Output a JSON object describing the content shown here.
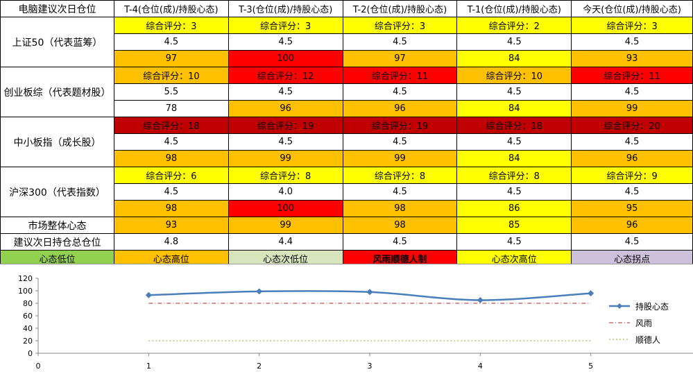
{
  "header": [
    "电脑建议次日仓位",
    "T-4(仓位(成)/持股心态)",
    "T-3(仓位(成)/持股心态)",
    "T-2(仓位(成)/持股心态)",
    "T-1(仓位(成)/持股心态)",
    "今天(仓位(成)/持股心态)"
  ],
  "groups": [
    {
      "label": "上证50（代表蓝筹）",
      "score": [
        "综合评分：3",
        "综合评分：3",
        "综合评分：3",
        "综合评分：2",
        "综合评分：3"
      ],
      "score_colors": [
        "yellow",
        "yellow",
        "yellow",
        "yellow",
        "yellow"
      ],
      "position": [
        "4.5",
        "4.5",
        "4.5",
        "4.5",
        "4.5"
      ],
      "mood": [
        "97",
        "100",
        "97",
        "84",
        "93"
      ],
      "mood_colors": [
        "orange",
        "red",
        "orange",
        "yellow",
        "orange"
      ]
    },
    {
      "label": "创业板综（代表题材股）",
      "score": [
        "综合评分：10",
        "综合评分：12",
        "综合评分：11",
        "综合评分：10",
        "综合评分：11"
      ],
      "score_colors": [
        "orange",
        "red",
        "red",
        "orange",
        "red"
      ],
      "position": [
        "5.5",
        "4.5",
        "4.5",
        "4.5",
        "4.5"
      ],
      "mood": [
        "78",
        "96",
        "96",
        "84",
        "99"
      ],
      "mood_colors": [
        "white",
        "orange",
        "orange",
        "yellow",
        "orange"
      ]
    },
    {
      "label": "中小板指（成长股）",
      "score": [
        "综合评分：18",
        "综合评分：19",
        "综合评分：19",
        "综合评分：18",
        "综合评分：20"
      ],
      "score_colors": [
        "darkred",
        "darkred",
        "darkred",
        "darkred",
        "darkred"
      ],
      "position": [
        "4.5",
        "4.5",
        "4.5",
        "4.5",
        "4.5"
      ],
      "mood": [
        "98",
        "99",
        "99",
        "84",
        "96"
      ],
      "mood_colors": [
        "orange",
        "orange",
        "orange",
        "yellow",
        "orange"
      ]
    },
    {
      "label": "沪深300（代表指数）",
      "score": [
        "综合评分：6",
        "综合评分：8",
        "综合评分：8",
        "综合评分：8",
        "综合评分：9"
      ],
      "score_colors": [
        "yellow",
        "yellow",
        "yellow",
        "yellow",
        "yellow"
      ],
      "position": [
        "4.5",
        "4.0",
        "4.5",
        "4.5",
        "4.5"
      ],
      "mood": [
        "98",
        "100",
        "98",
        "86",
        "95"
      ],
      "mood_colors": [
        "orange",
        "red",
        "orange",
        "yellow",
        "orange"
      ]
    }
  ],
  "market_mood": {
    "label": "市场整体心态",
    "values": [
      "93",
      "99",
      "98",
      "85",
      "96"
    ],
    "colors": [
      "orange",
      "orange",
      "orange",
      "yellow",
      "orange"
    ]
  },
  "total_position": {
    "label": "建议次日持仓总仓位",
    "values": [
      "4.8",
      "4.4",
      "4.5",
      "4.5",
      "4.5"
    ]
  },
  "legend": [
    {
      "label": "心态低位",
      "color": "#92d050"
    },
    {
      "label": "心态高位",
      "color": "#ffc000"
    },
    {
      "label": "心态次低位",
      "color": "#d8e4bc"
    },
    {
      "label": "风雨顺德人制",
      "color": "#ff0000"
    },
    {
      "label": "心态次高位",
      "color": "#ffff00"
    },
    {
      "label": "心态拐点",
      "color": "#ccc0da"
    }
  ],
  "palette": {
    "white": "#ffffff",
    "yellow": "#ffff00",
    "orange": "#ffc000",
    "red": "#ff0000",
    "darkred": "#c00000"
  },
  "chart_data": {
    "type": "line",
    "x": [
      1,
      2,
      3,
      4,
      5
    ],
    "xlim": [
      0,
      6
    ],
    "x_ticks": [
      "0",
      "1",
      "2",
      "3",
      "4",
      "5"
    ],
    "ylim": [
      0,
      120
    ],
    "y_ticks": [
      "0",
      "20",
      "40",
      "60",
      "80",
      "100",
      "120"
    ],
    "grid": false,
    "legend_position": "right",
    "series": [
      {
        "name": "持股心态",
        "values": [
          93,
          99,
          98,
          85,
          96
        ],
        "color": "#4a7ebb",
        "style": "solid-marker"
      },
      {
        "name": "风雨",
        "values": [
          80,
          80,
          80,
          80,
          80
        ],
        "color": "#c0504d",
        "style": "dashdot"
      },
      {
        "name": "顺德人",
        "values": [
          20,
          20,
          20,
          20,
          20
        ],
        "color": "#9bbb59",
        "style": "dotted"
      }
    ]
  }
}
